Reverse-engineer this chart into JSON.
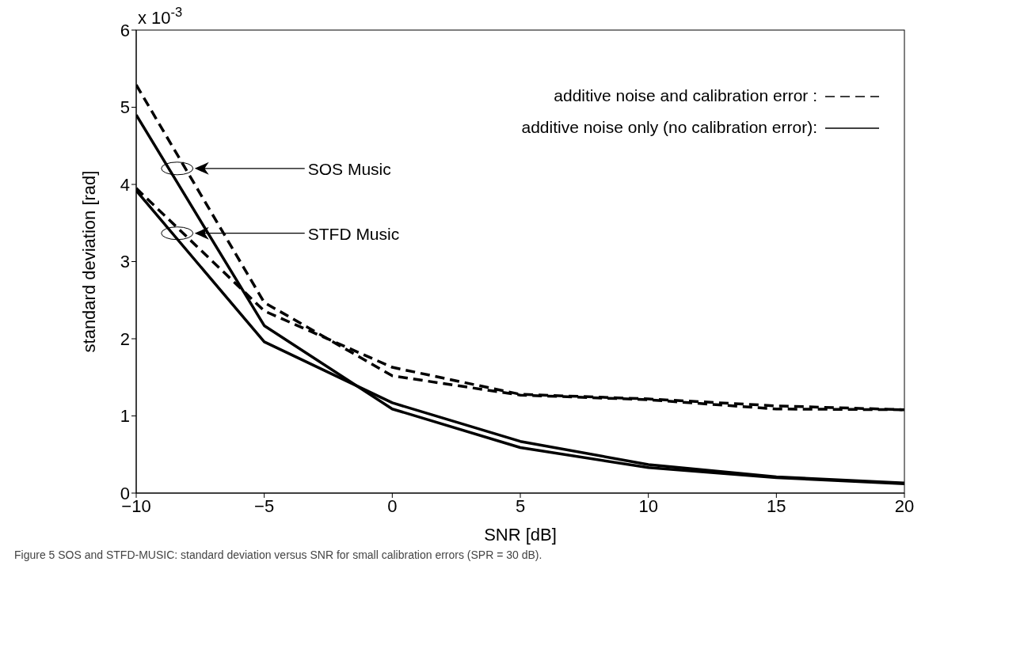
{
  "chart_data": {
    "type": "line",
    "xlabel": "SNR [dB]",
    "ylabel": "standard deviation [rad]",
    "x": [
      -10,
      -5,
      0,
      5,
      10,
      15,
      20
    ],
    "series": [
      {
        "color": "#000000",
        "line_style": "dashed",
        "values": [
          5.29,
          2.47,
          1.52,
          1.27,
          1.21,
          1.09,
          1.08
        ]
      },
      {
        "color": "#000000",
        "line_style": "dashed",
        "values": [
          3.95,
          2.36,
          1.63,
          1.28,
          1.22,
          1.13,
          1.08
        ]
      },
      {
        "color": "#000000",
        "line_style": "solid",
        "values": [
          4.9,
          2.17,
          1.09,
          0.59,
          0.33,
          0.2,
          0.12
        ]
      },
      {
        "color": "#000000",
        "line_style": "solid",
        "values": [
          3.92,
          1.96,
          1.17,
          0.67,
          0.37,
          0.21,
          0.13
        ]
      }
    ],
    "xlim": [
      -10,
      20
    ],
    "xticks": [
      -10,
      -5,
      0,
      5,
      10,
      15,
      20
    ],
    "ylim": [
      0,
      6
    ],
    "yticks": [
      0,
      1,
      2,
      3,
      4,
      5,
      6
    ],
    "grid": false,
    "legend": false,
    "marker": "none",
    "annotations": [
      "x 10$^{-3}$",
      "additive noise and calibration error :",
      "additive noise only  (no calibration error):",
      "SOS Music",
      "STFD Music",
      "Figure 5 SOS and STFD-MUSIC: standard deviation versus SNR for small calibration errors (SPR = 30 dB)."
    ]
  }
}
